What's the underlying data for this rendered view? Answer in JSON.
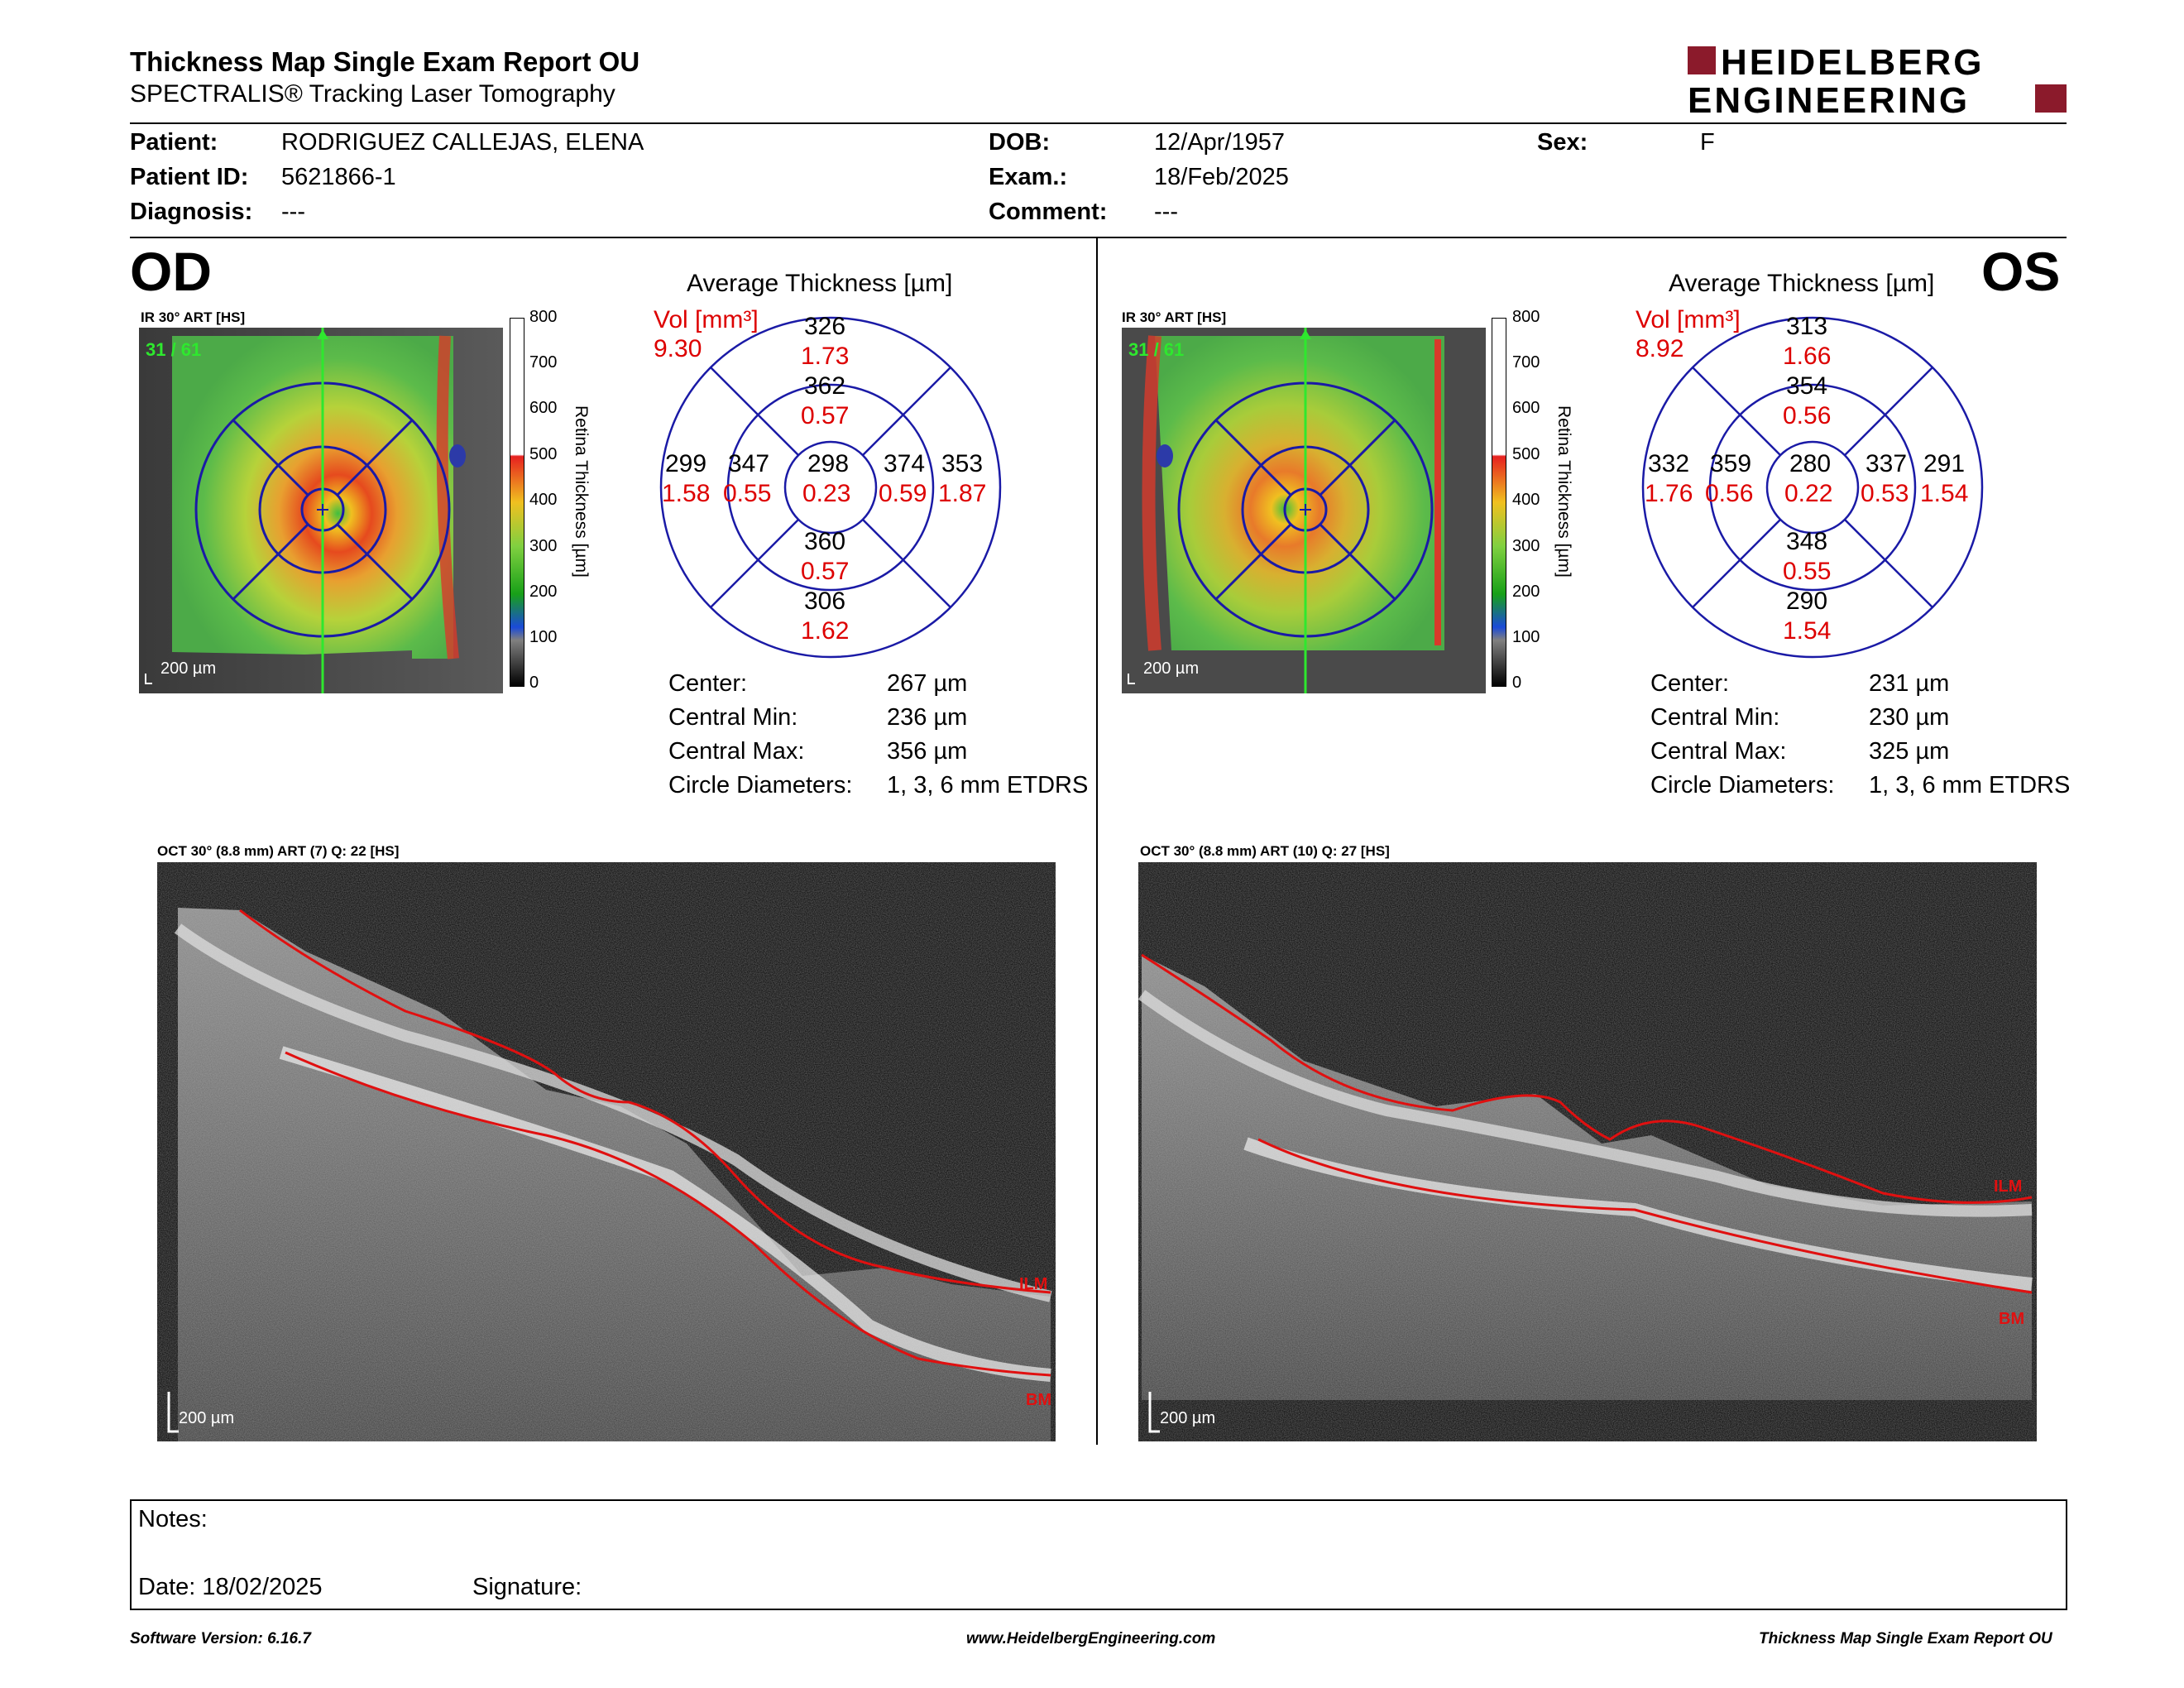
{
  "header": {
    "title": "Thickness Map Single Exam Report OU",
    "subtitle": "SPECTRALIS® Tracking Laser Tomography",
    "logo_line1": "HEIDELBERG",
    "logo_line2": "ENGINEERING",
    "brand_color": "#8B1A2B"
  },
  "patient": {
    "patient_label": "Patient:",
    "patient_value": "RODRIGUEZ CALLEJAS, ELENA",
    "id_label": "Patient ID:",
    "id_value": "5621866-1",
    "diagnosis_label": "Diagnosis:",
    "diagnosis_value": "---",
    "dob_label": "DOB:",
    "dob_value": "12/Apr/1957",
    "exam_label": "Exam.:",
    "exam_value": "18/Feb/2025",
    "comment_label": "Comment:",
    "comment_value": "---",
    "sex_label": "Sex:",
    "sex_value": "F"
  },
  "scale": {
    "ticks": [
      "800",
      "700",
      "600",
      "500",
      "400",
      "300",
      "200",
      "100",
      "0"
    ],
    "label": "Retina Thickness [µm]"
  },
  "od": {
    "eye": "OD",
    "ir_caption": "IR 30° ART [HS]",
    "frame": "31 / 61",
    "scalebar": "200 µm",
    "avg_title": "Average Thickness [µm]",
    "vol_label": "Vol [mm³]",
    "vol_value": "9.30",
    "etdrs": {
      "center": {
        "t": "298",
        "v": "0.23"
      },
      "inner_sup": {
        "t": "362",
        "v": "0.57"
      },
      "inner_inf": {
        "t": "360",
        "v": "0.57"
      },
      "inner_left": {
        "t": "347",
        "v": "0.55"
      },
      "inner_right": {
        "t": "374",
        "v": "0.59"
      },
      "outer_sup": {
        "t": "326",
        "v": "1.73"
      },
      "outer_inf": {
        "t": "306",
        "v": "1.62"
      },
      "outer_left": {
        "t": "299",
        "v": "1.58"
      },
      "outer_right": {
        "t": "353",
        "v": "1.87"
      }
    },
    "stats": {
      "center_label": "Center:",
      "center_value": "267 µm",
      "min_label": "Central Min:",
      "min_value": "236 µm",
      "max_label": "Central Max:",
      "max_value": "356 µm",
      "circle_label": "Circle Diameters:",
      "circle_value": "1, 3, 6 mm ETDRS"
    },
    "oct_caption": "OCT 30° (8.8 mm) ART (7) Q: 22 [HS]",
    "ilm": "ILM",
    "bm": "BM",
    "oct_scalebar": "200 µm"
  },
  "os": {
    "eye": "OS",
    "ir_caption": "IR 30° ART [HS]",
    "frame": "31 / 61",
    "scalebar": "200 µm",
    "avg_title": "Average Thickness [µm]",
    "vol_label": "Vol [mm³]",
    "vol_value": "8.92",
    "etdrs": {
      "center": {
        "t": "280",
        "v": "0.22"
      },
      "inner_sup": {
        "t": "354",
        "v": "0.56"
      },
      "inner_inf": {
        "t": "348",
        "v": "0.55"
      },
      "inner_left": {
        "t": "359",
        "v": "0.56"
      },
      "inner_right": {
        "t": "337",
        "v": "0.53"
      },
      "outer_sup": {
        "t": "313",
        "v": "1.66"
      },
      "outer_inf": {
        "t": "290",
        "v": "1.54"
      },
      "outer_left": {
        "t": "332",
        "v": "1.76"
      },
      "outer_right": {
        "t": "291",
        "v": "1.54"
      }
    },
    "stats": {
      "center_label": "Center:",
      "center_value": "231 µm",
      "min_label": "Central Min:",
      "min_value": "230 µm",
      "max_label": "Central Max:",
      "max_value": "325 µm",
      "circle_label": "Circle Diameters:",
      "circle_value": "1, 3, 6 mm ETDRS"
    },
    "oct_caption": "OCT 30° (8.8 mm) ART (10) Q: 27 [HS]",
    "ilm": "ILM",
    "bm": "BM",
    "oct_scalebar": "200 µm"
  },
  "notes": {
    "notes_label": "Notes:",
    "date_label": "Date: 18/02/2025",
    "signature_label": "Signature:"
  },
  "footer": {
    "software": "Software Version: 6.16.7",
    "website": "www.HeidelbergEngineering.com",
    "report": "Thickness Map Single Exam Report OU"
  }
}
